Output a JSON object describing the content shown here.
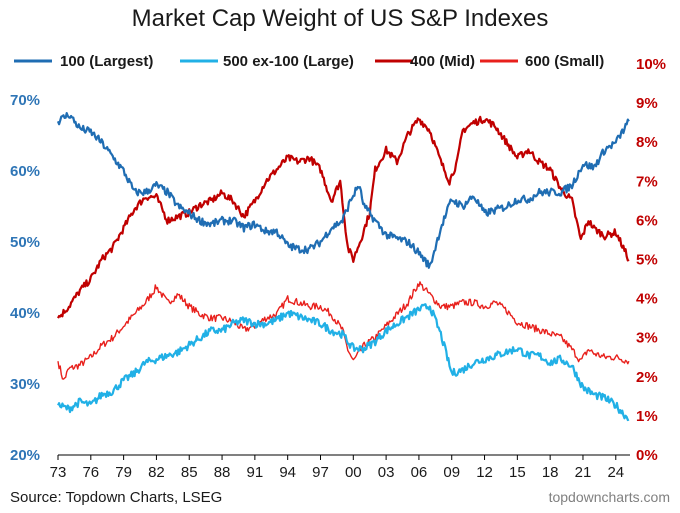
{
  "chart_data": {
    "type": "line",
    "title": "Market Cap Weight of US S&P Indexes",
    "source": "Source: Topdown Charts, LSEG",
    "watermark": "topdowncharts.com",
    "x_tick_labels": [
      "73",
      "76",
      "79",
      "82",
      "85",
      "88",
      "91",
      "94",
      "97",
      "00",
      "03",
      "06",
      "09",
      "12",
      "15",
      "18",
      "21",
      "24"
    ],
    "x_range": [
      1973,
      2025.3
    ],
    "left_axis": {
      "ticks": [
        "20%",
        "30%",
        "40%",
        "50%",
        "60%",
        "70%"
      ],
      "range": [
        20,
        70
      ],
      "color": "#2e75b6"
    },
    "right_axis": {
      "ticks": [
        "0%",
        "1%",
        "2%",
        "3%",
        "4%",
        "5%",
        "6%",
        "7%",
        "8%",
        "9%",
        "10%"
      ],
      "range": [
        0,
        10
      ],
      "color": "#c00000"
    },
    "series": [
      {
        "name": "100 (Largest)",
        "axis": "left",
        "color": "#1f6db3",
        "width": 2.2,
        "x": [
          1973,
          1974,
          1975,
          1976,
          1977,
          1978,
          1979,
          1980,
          1981,
          1982,
          1983,
          1984,
          1985,
          1986,
          1987,
          1988,
          1989,
          1990,
          1991,
          1992,
          1993,
          1994,
          1995,
          1996,
          1997,
          1998,
          1999,
          1999.8,
          2000.5,
          2001,
          2002,
          2003,
          2004,
          2005,
          2006,
          2007,
          2008,
          2009,
          2010,
          2011,
          2012,
          2013,
          2014,
          2015,
          2016,
          2017,
          2018,
          2019,
          2020,
          2021,
          2022,
          2023,
          2024,
          2025.2
        ],
        "y": [
          67,
          68,
          66,
          65.5,
          64,
          62,
          60,
          57,
          57,
          58,
          57,
          55,
          54,
          53,
          52.5,
          53,
          53,
          52,
          52.5,
          51.5,
          51.5,
          49.5,
          49,
          49,
          50,
          52,
          53,
          56,
          58,
          55,
          53,
          51,
          50.5,
          50,
          48.5,
          46.5,
          52,
          56,
          55,
          56.5,
          54,
          54.5,
          55,
          56,
          56,
          57,
          57,
          57,
          58,
          61,
          60.5,
          63,
          64,
          67
        ]
      },
      {
        "name": "500 ex-100 (Large)",
        "axis": "left",
        "color": "#21b0e6",
        "width": 2.2,
        "x": [
          1973,
          1974,
          1975,
          1976,
          1977,
          1978,
          1979,
          1980,
          1981,
          1982,
          1983,
          1984,
          1985,
          1986,
          1987,
          1988,
          1989,
          1990,
          1991,
          1992,
          1993,
          1994,
          1995,
          1996,
          1997,
          1998,
          1999,
          2000,
          2001,
          2002,
          2003,
          2004,
          2005,
          2006,
          2007,
          2008,
          2009,
          2010,
          2011,
          2012,
          2013,
          2014,
          2015,
          2016,
          2017,
          2018,
          2019,
          2020,
          2021,
          2022,
          2023,
          2024,
          2025.2
        ],
        "y": [
          27,
          26.5,
          27.5,
          27,
          28.5,
          29,
          30.5,
          31.5,
          33,
          33.5,
          34,
          34.5,
          35.5,
          36.5,
          37.5,
          37.5,
          38.5,
          39,
          38.5,
          38.5,
          39,
          40,
          39.5,
          39,
          38.5,
          37.5,
          37,
          35,
          35,
          36,
          37.5,
          38.5,
          39.5,
          40.5,
          41,
          37,
          31.5,
          32,
          33,
          33.5,
          34,
          34.5,
          35,
          34,
          34,
          33,
          33.5,
          32.5,
          29.5,
          28.5,
          28,
          27,
          25
        ]
      },
      {
        "name": "400 (Mid)",
        "axis": "right",
        "color": "#c00000",
        "width": 2.2,
        "x": [
          1973,
          1974,
          1975,
          1976,
          1977,
          1978,
          1979,
          1980,
          1981,
          1982,
          1983,
          1984,
          1985,
          1986,
          1987,
          1988,
          1989,
          1990,
          1991,
          1992,
          1993,
          1994,
          1995,
          1996,
          1997,
          1998,
          1998.8,
          1999.5,
          2000,
          2000.8,
          2001.5,
          2002,
          2003,
          2004,
          2005,
          2006,
          2007,
          2008,
          2008.8,
          2009.5,
          2010,
          2011,
          2012,
          2013,
          2014,
          2015,
          2016,
          2017,
          2018,
          2019,
          2020,
          2020.8,
          2021.5,
          2022,
          2023,
          2024,
          2025.2
        ],
        "y": [
          3.5,
          3.8,
          4.2,
          4.5,
          5,
          5.3,
          5.8,
          6.3,
          6.6,
          6.6,
          6,
          6.1,
          6.2,
          6.4,
          6.5,
          6.7,
          6.5,
          6.1,
          6.5,
          7,
          7.3,
          7.6,
          7.5,
          7.6,
          7.3,
          6.5,
          7,
          5.3,
          5,
          5.6,
          6.2,
          7.3,
          7.8,
          7.5,
          8.2,
          8.6,
          8.3,
          7.5,
          7,
          7.5,
          8.3,
          8.5,
          8.6,
          8.4,
          8,
          7.6,
          7.8,
          7.5,
          7.3,
          6.8,
          6.5,
          5.5,
          6,
          5.8,
          5.6,
          5.7,
          5
        ]
      },
      {
        "name": "600 (Small)",
        "axis": "right",
        "color": "#e8201c",
        "width": 1.4,
        "x": [
          1973,
          1973.5,
          1974,
          1975,
          1976,
          1977,
          1978,
          1979,
          1980,
          1981,
          1982,
          1983,
          1984,
          1985,
          1986,
          1987,
          1988,
          1989,
          1990,
          1991,
          1992,
          1993,
          1994,
          1995,
          1996,
          1997,
          1998,
          1999,
          1999.5,
          2000,
          2001,
          2002,
          2003,
          2004,
          2005,
          2006,
          2007,
          2008,
          2009,
          2010,
          2011,
          2012,
          2013,
          2014,
          2015,
          2016,
          2017,
          2018,
          2019,
          2020,
          2020.8,
          2021.5,
          2022,
          2023,
          2024,
          2025.2
        ],
        "y": [
          2.4,
          1.9,
          2.2,
          2.3,
          2.5,
          2.8,
          3,
          3.3,
          3.6,
          3.9,
          4.3,
          3.9,
          4.1,
          3.8,
          3.6,
          3.5,
          3.5,
          3.4,
          3.2,
          3.3,
          3.5,
          3.6,
          4,
          3.9,
          3.8,
          3.8,
          3.6,
          3.2,
          2.7,
          2.4,
          2.8,
          3,
          3.3,
          3.6,
          3.9,
          4.4,
          4.1,
          3.8,
          3.8,
          3.9,
          3.9,
          3.8,
          3.9,
          3.7,
          3.4,
          3.3,
          3.2,
          3.1,
          3,
          2.7,
          2.4,
          2.7,
          2.6,
          2.5,
          2.5,
          2.4
        ]
      }
    ]
  }
}
